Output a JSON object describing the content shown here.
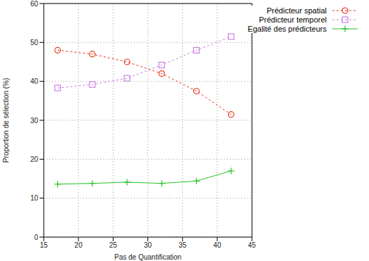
{
  "chart_data": {
    "type": "line",
    "x_label": "Pas de Quantification",
    "y_label": "Proportion de sélection (%)",
    "x": [
      17,
      22,
      27,
      32,
      37,
      42
    ],
    "series": [
      {
        "name": "Prédicteur spatial",
        "color": "#e8341c",
        "marker": "circle",
        "line_style": "dashed",
        "values": [
          48,
          47,
          45,
          42,
          37.5,
          31.5
        ]
      },
      {
        "name": "Prédicteur temporel",
        "color": "#cc7ee0",
        "marker": "square",
        "line_style": "dashed",
        "values": [
          38.3,
          39.2,
          40.8,
          44.2,
          48,
          51.5
        ]
      },
      {
        "name": "Egalité des prédicteurs",
        "color": "#22c222",
        "marker": "plus",
        "line_style": "solid",
        "values": [
          13.6,
          13.8,
          14.1,
          13.8,
          14.4,
          17
        ]
      }
    ],
    "xlim": [
      15,
      45
    ],
    "xticks": [
      15,
      20,
      25,
      30,
      35,
      40,
      45
    ],
    "ylim": [
      0,
      60
    ],
    "yticks": [
      0,
      10,
      20,
      30,
      40,
      50,
      60
    ],
    "grid": true,
    "legend": "top-right"
  }
}
